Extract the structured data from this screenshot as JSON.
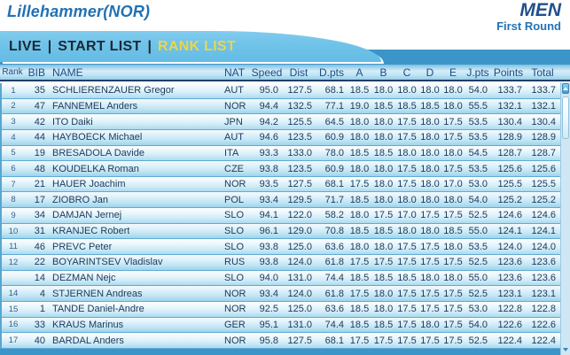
{
  "header": {
    "event_title": "Lillehammer(NOR)",
    "category": "MEN",
    "round": "First Round"
  },
  "nav": {
    "separator": "|",
    "items": [
      {
        "id": "live",
        "label": "LIVE",
        "active": false
      },
      {
        "id": "start-list",
        "label": "START LIST",
        "active": false
      },
      {
        "id": "rank-list",
        "label": "RANK LIST",
        "active": true
      }
    ]
  },
  "table": {
    "columns": [
      "Rank",
      "BIB",
      "NAME",
      "NAT",
      "Speed",
      "Dist",
      "D.pts",
      "A",
      "B",
      "C",
      "D",
      "E",
      "J.pts",
      "Points",
      "Total"
    ],
    "rows": [
      [
        "1",
        "35",
        "SCHLIERENZAUER Gregor",
        "AUT",
        "95.0",
        "127.5",
        "68.1",
        "18.5",
        "18.0",
        "18.0",
        "18.0",
        "18.0",
        "54.0",
        "133.7",
        "133.7"
      ],
      [
        "2",
        "47",
        "FANNEMEL Anders",
        "NOR",
        "94.4",
        "132.5",
        "77.1",
        "19.0",
        "18.5",
        "18.5",
        "18.5",
        "18.0",
        "55.5",
        "132.1",
        "132.1"
      ],
      [
        "3",
        "42",
        "ITO Daiki",
        "JPN",
        "94.2",
        "125.5",
        "64.5",
        "18.0",
        "18.0",
        "17.5",
        "18.0",
        "17.5",
        "53.5",
        "130.4",
        "130.4"
      ],
      [
        "4",
        "44",
        "HAYBOECK Michael",
        "AUT",
        "94.6",
        "123.5",
        "60.9",
        "18.0",
        "18.0",
        "17.5",
        "18.0",
        "17.5",
        "53.5",
        "128.9",
        "128.9"
      ],
      [
        "5",
        "19",
        "BRESADOLA Davide",
        "ITA",
        "93.3",
        "133.0",
        "78.0",
        "18.5",
        "18.5",
        "18.0",
        "18.0",
        "18.0",
        "54.5",
        "128.7",
        "128.7"
      ],
      [
        "6",
        "48",
        "KOUDELKA Roman",
        "CZE",
        "93.8",
        "123.5",
        "60.9",
        "18.0",
        "18.0",
        "17.5",
        "18.0",
        "17.5",
        "53.5",
        "125.6",
        "125.6"
      ],
      [
        "7",
        "21",
        "HAUER Joachim",
        "NOR",
        "93.5",
        "127.5",
        "68.1",
        "17.5",
        "18.0",
        "17.5",
        "18.0",
        "17.0",
        "53.0",
        "125.5",
        "125.5"
      ],
      [
        "8",
        "17",
        "ZIOBRO Jan",
        "POL",
        "93.4",
        "129.5",
        "71.7",
        "18.5",
        "18.0",
        "18.0",
        "18.0",
        "18.0",
        "54.0",
        "125.2",
        "125.2"
      ],
      [
        "9",
        "34",
        "DAMJAN Jernej",
        "SLO",
        "94.1",
        "122.0",
        "58.2",
        "18.0",
        "17.5",
        "17.0",
        "17.5",
        "17.5",
        "52.5",
        "124.6",
        "124.6"
      ],
      [
        "10",
        "31",
        "KRANJEC Robert",
        "SLO",
        "96.1",
        "129.0",
        "70.8",
        "18.5",
        "18.5",
        "18.0",
        "18.0",
        "18.5",
        "55.0",
        "124.1",
        "124.1"
      ],
      [
        "11",
        "46",
        "PREVC Peter",
        "SLO",
        "93.8",
        "125.0",
        "63.6",
        "18.0",
        "18.0",
        "17.5",
        "17.5",
        "18.0",
        "53.5",
        "124.0",
        "124.0"
      ],
      [
        "12",
        "22",
        "BOYARINTSEV Vladislav",
        "RUS",
        "93.8",
        "124.0",
        "61.8",
        "17.5",
        "17.5",
        "17.5",
        "17.5",
        "17.5",
        "52.5",
        "123.6",
        "123.6"
      ],
      [
        "",
        "14",
        "DEZMAN Nejc",
        "SLO",
        "94.0",
        "131.0",
        "74.4",
        "18.5",
        "18.5",
        "18.5",
        "18.0",
        "18.0",
        "55.0",
        "123.6",
        "123.6"
      ],
      [
        "14",
        "4",
        "STJERNEN Andreas",
        "NOR",
        "93.4",
        "124.0",
        "61.8",
        "17.5",
        "18.0",
        "17.5",
        "17.5",
        "17.5",
        "52.5",
        "123.1",
        "123.1"
      ],
      [
        "15",
        "1",
        "TANDE Daniel-Andre",
        "NOR",
        "92.5",
        "125.0",
        "63.6",
        "18.5",
        "18.0",
        "17.5",
        "17.5",
        "17.5",
        "53.0",
        "122.8",
        "122.8"
      ],
      [
        "16",
        "33",
        "KRAUS Marinus",
        "GER",
        "95.1",
        "131.0",
        "74.4",
        "18.5",
        "18.5",
        "17.5",
        "18.0",
        "17.5",
        "54.0",
        "122.6",
        "122.6"
      ],
      [
        "17",
        "40",
        "BARDAL Anders",
        "NOR",
        "95.8",
        "127.5",
        "68.1",
        "17.5",
        "17.5",
        "17.5",
        "17.5",
        "17.5",
        "52.5",
        "122.4",
        "122.4"
      ]
    ]
  },
  "scrollbar": {
    "up_icon": "triangle-up",
    "down_icon": "triangle-down"
  },
  "colors": {
    "title_blue": "#2171b4",
    "navy": "#23508a",
    "nav_blue": "#6fc3e8",
    "strip_blue": "#3c95c9",
    "highlight_yellow": "#edd54a",
    "header_text": "#1d4d85",
    "row_text": "#1b3a5c"
  }
}
